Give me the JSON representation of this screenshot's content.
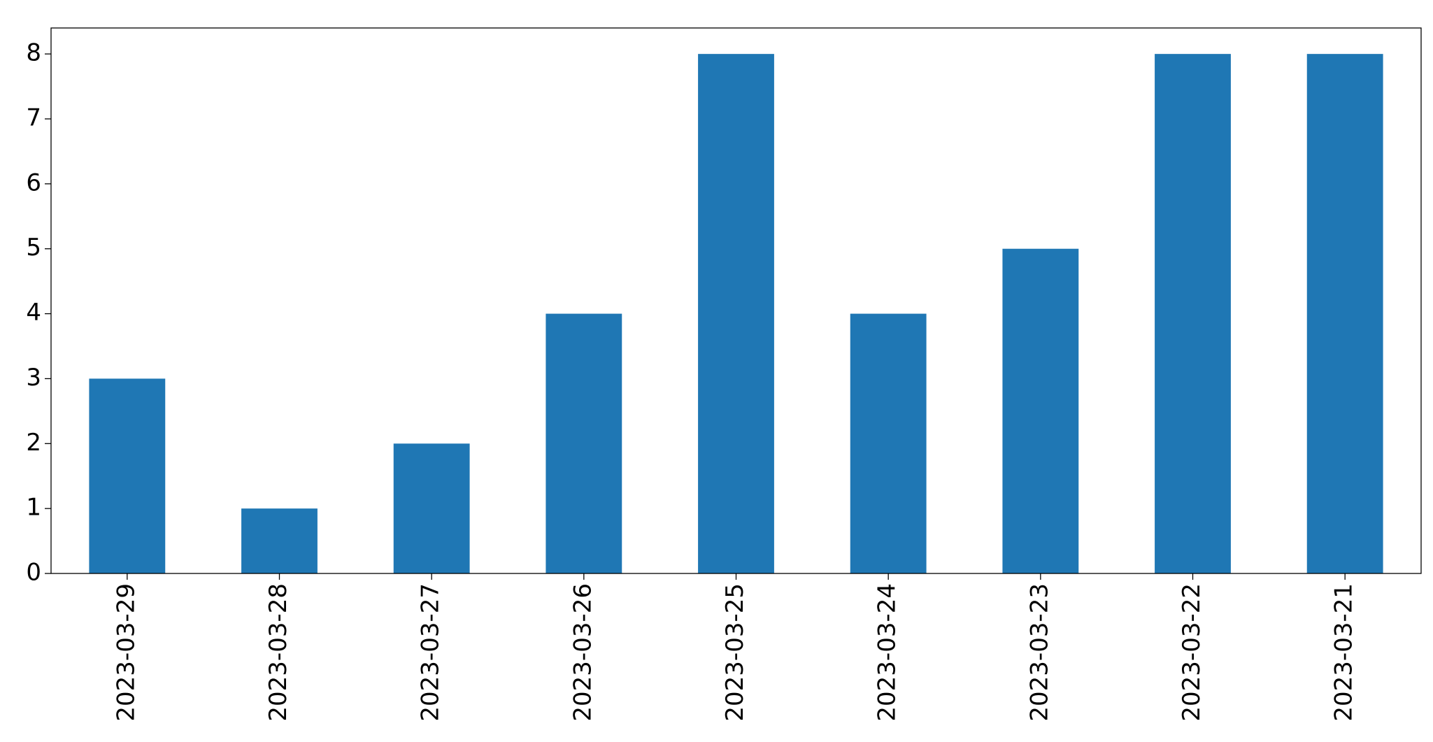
{
  "chart_data": {
    "type": "bar",
    "categories": [
      "2023-03-29",
      "2023-03-28",
      "2023-03-27",
      "2023-03-26",
      "2023-03-25",
      "2023-03-24",
      "2023-03-23",
      "2023-03-22",
      "2023-03-21"
    ],
    "values": [
      3,
      1,
      2,
      4,
      8,
      4,
      5,
      8,
      8
    ],
    "color": "#1f77b4",
    "ylim": [
      0,
      8.4
    ],
    "yticks": [
      0,
      1,
      2,
      3,
      4,
      5,
      6,
      7,
      8
    ],
    "grid": false
  }
}
